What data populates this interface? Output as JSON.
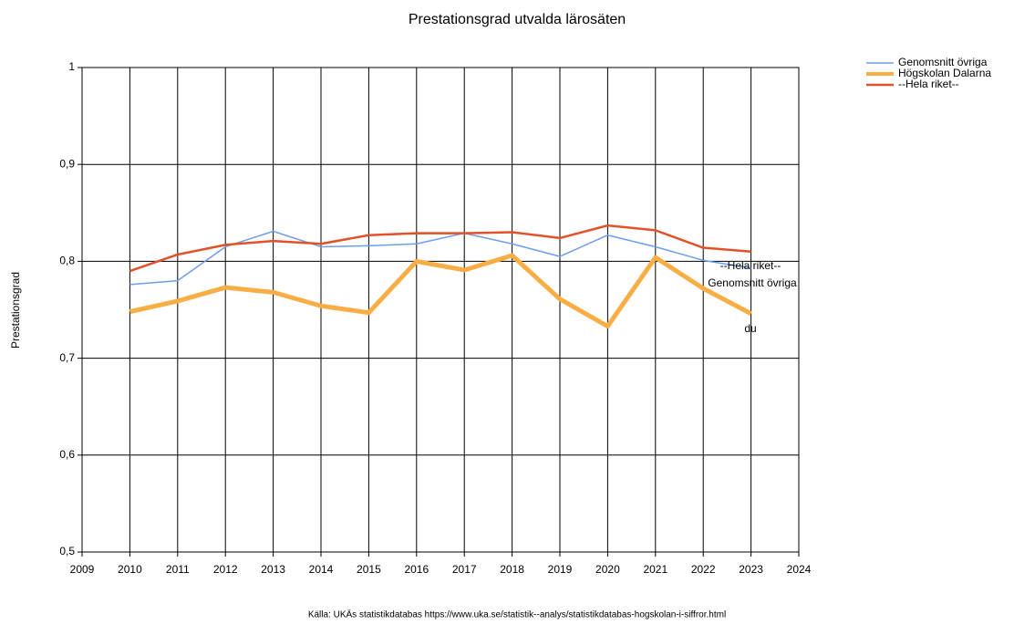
{
  "chart_data": {
    "type": "line",
    "title": "Prestationsgrad utvalda lärosäten",
    "ylabel": "Prestationsgrad",
    "source": "Källa: UKÄs statistikdatabas https://www.uka.se/statistik--analys/statistikdatabas-hogskolan-i-siffror.html",
    "x": [
      2010,
      2011,
      2012,
      2013,
      2014,
      2015,
      2016,
      2017,
      2018,
      2019,
      2020,
      2021,
      2022,
      2023
    ],
    "series": [
      {
        "name": "Genomsnitt övriga",
        "color": "#6d9eeb",
        "width": 1.5,
        "values": [
          0.776,
          0.78,
          0.815,
          0.831,
          0.815,
          0.816,
          0.818,
          0.829,
          0.818,
          0.805,
          0.827,
          0.815,
          0.801,
          0.793
        ]
      },
      {
        "name": "Högskolan Dalarna",
        "color": "#f8ae45",
        "width": 5,
        "values": [
          0.748,
          0.759,
          0.773,
          0.768,
          0.754,
          0.747,
          0.8,
          0.791,
          0.806,
          0.761,
          0.733,
          0.804,
          0.772,
          0.746
        ]
      },
      {
        "name": "--Hela riket--",
        "color": "#e0522a",
        "width": 2.5,
        "values": [
          0.79,
          0.807,
          0.817,
          0.821,
          0.818,
          0.827,
          0.829,
          0.829,
          0.83,
          0.824,
          0.837,
          0.832,
          0.814,
          0.81
        ]
      }
    ],
    "annotations": [
      "--Hela riket--",
      "Genomsnitt övriga",
      "du"
    ],
    "xlim": [
      2009,
      2024
    ],
    "xticks": [
      2009,
      2010,
      2011,
      2012,
      2013,
      2014,
      2015,
      2016,
      2017,
      2018,
      2019,
      2020,
      2021,
      2022,
      2023,
      2024
    ],
    "ylim": [
      0.5,
      1
    ],
    "yticks": [
      {
        "value": 0.5,
        "label": "0,5"
      },
      {
        "value": 0.6,
        "label": "0,6"
      },
      {
        "value": 0.7,
        "label": "0,7"
      },
      {
        "value": 0.8,
        "label": "0,8"
      },
      {
        "value": 0.9,
        "label": "0,9"
      },
      1
    ],
    "grid": true,
    "legend": "upper right"
  }
}
